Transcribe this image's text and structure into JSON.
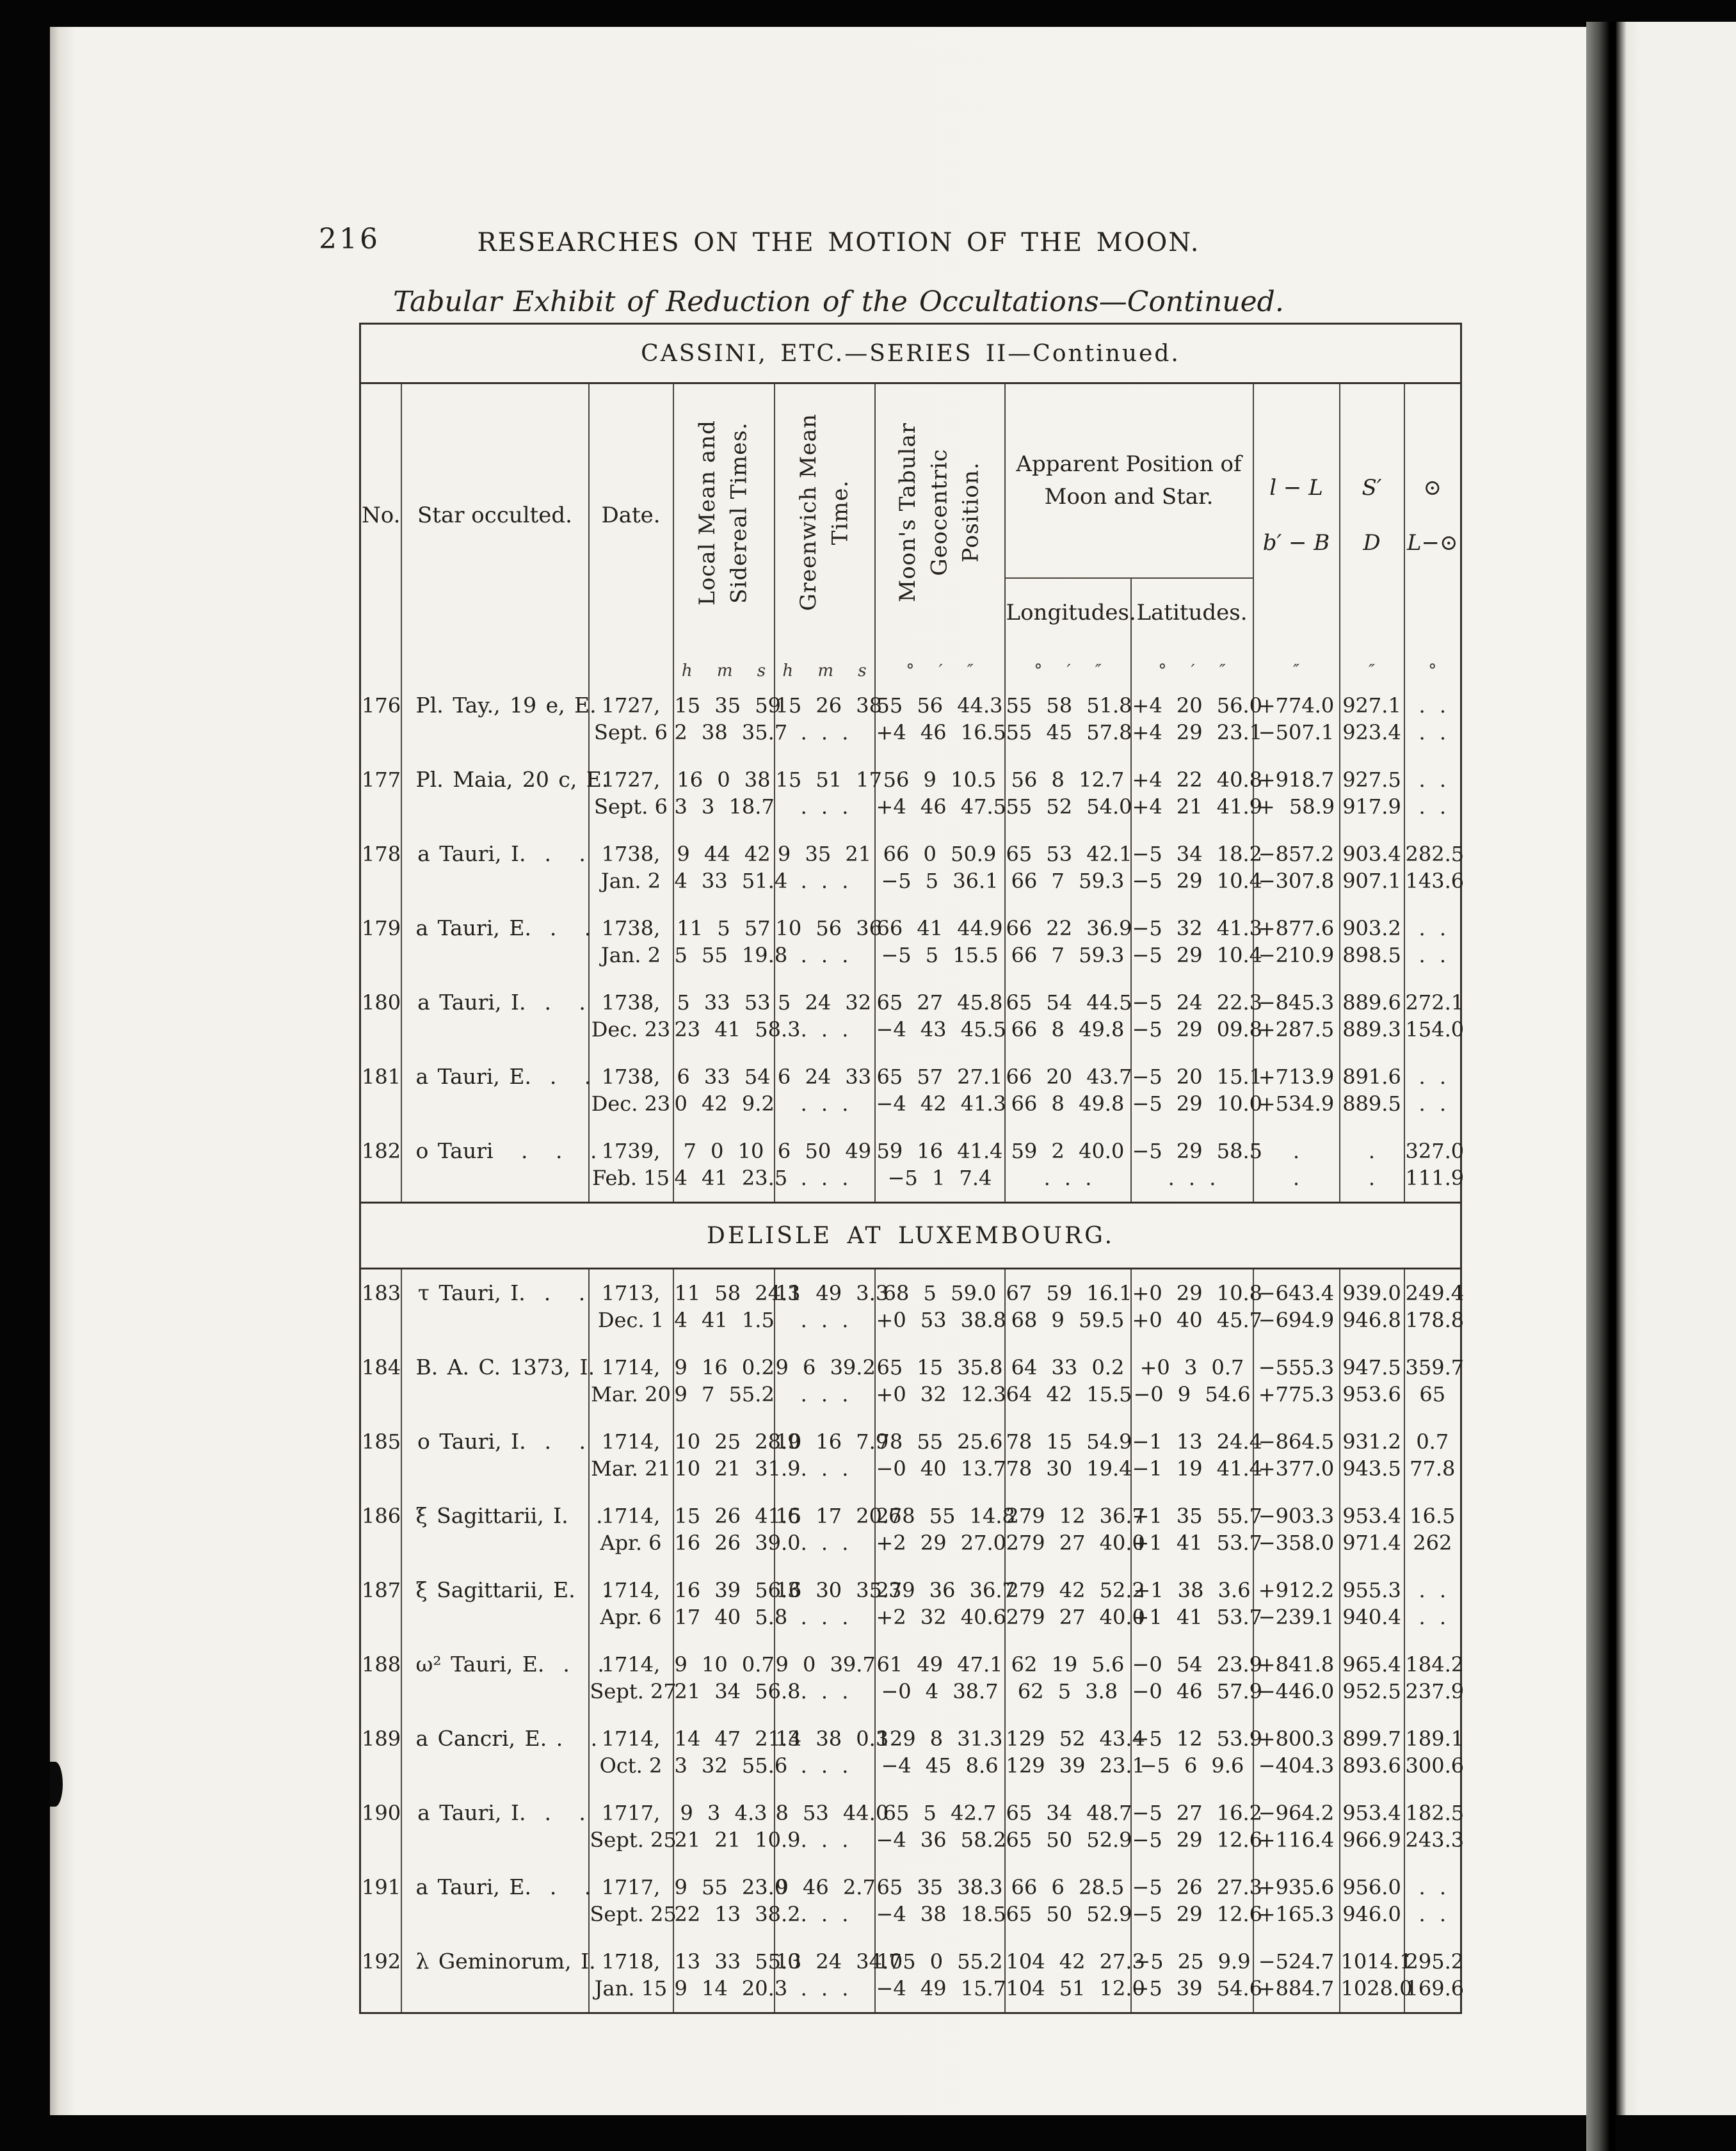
{
  "page": {
    "page_number": "216",
    "running_title": "RESEARCHES ON THE MOTION OF THE MOON.",
    "subtitle": "Tabular Exhibit of Reduction of the Occultations—Continued."
  },
  "table": {
    "header": {
      "no": "No.",
      "star": "Star occulted.",
      "date": "Date.",
      "local_mean": "Local Mean and\nSidereal Times.",
      "gmt": "Greenwich Mean\nTime.",
      "moon_tabular": "Moon's Tabular\nGeocentric\nPosition.",
      "apparent": "Apparent Position of\nMoon and Star.",
      "longitudes": "Longitudes.",
      "latitudes": "Latitudes.",
      "l_minus_L": "l − L",
      "b_minus_B": "b′ − B",
      "s_prime": "S′",
      "d": "D",
      "sun": "⊙",
      "L_minus_sun": "L−⊙"
    },
    "units": [
      "",
      "",
      "",
      "h m s",
      "h m s",
      "° ′ ″",
      "° ′ ″",
      "° ′ ″",
      "″",
      "″",
      "°"
    ],
    "sections": [
      {
        "title": "CASSINI, ETC.—SERIES II—Continued.",
        "rows": [
          {
            "no": "176",
            "star": "Pl. Tay., 19 e, E.",
            "date": [
              "1727,",
              "Sept. 6"
            ],
            "line1": [
              "15 35 59",
              "15 26 38",
              "55 56 44.3",
              "55 58 51.8",
              "+4 20 56.0",
              "+774.0",
              "927.1",
              ". ."
            ],
            "line2": [
              "2 38 35.7",
              ". . .",
              "+4 46 16.5",
              "55 45 57.8",
              "+4 29 23.1",
              "−507.1",
              "923.4",
              ". ."
            ]
          },
          {
            "no": "177",
            "star": "Pl. Maia, 20 c, E.",
            "date": [
              "1727,",
              "Sept. 6"
            ],
            "line1": [
              "16 0 38",
              "15 51 17",
              "56 9 10.5",
              "56 8 12.7",
              "+4 22 40.8",
              "+918.7",
              "927.5",
              ". ."
            ],
            "line2": [
              "3 3 18.7",
              ". . .",
              "+4 46 47.5",
              "55 52 54.0",
              "+4 21 41.9",
              "+ 58.9",
              "917.9",
              ". ."
            ]
          },
          {
            "no": "178",
            "star": "a Tauri, I.  .   .",
            "date": [
              "1738,",
              "Jan. 2"
            ],
            "line1": [
              "9 44 42",
              "9 35 21",
              "66 0 50.9",
              "65 53 42.1",
              "−5 34 18.2",
              "−857.2",
              "903.4",
              "282.5"
            ],
            "line2": [
              "4 33 51.4",
              ". . .",
              "−5 5 36.1",
              "66 7 59.3",
              "−5 29 10.4",
              "−307.8",
              "907.1",
              "143.6"
            ]
          },
          {
            "no": "179",
            "star": "a Tauri, E.  .   .",
            "date": [
              "1738,",
              "Jan. 2"
            ],
            "line1": [
              "11 5 57",
              "10 56 36",
              "66 41 44.9",
              "66 22 36.9",
              "−5 32 41.3",
              "+877.6",
              "903.2",
              ". ."
            ],
            "line2": [
              "5 55 19.8",
              ". . .",
              "−5 5 15.5",
              "66 7 59.3",
              "−5 29 10.4",
              "−210.9",
              "898.5",
              ". ."
            ]
          },
          {
            "no": "180",
            "star": "a Tauri, I.  .   .",
            "date": [
              "1738,",
              "Dec. 23"
            ],
            "line1": [
              "5 33 53",
              "5 24 32",
              "65 27 45.8",
              "65 54 44.5",
              "−5 24 22.3",
              "−845.3",
              "889.6",
              "272.1"
            ],
            "line2": [
              "23 41 58.3",
              ". . .",
              "−4 43 45.5",
              "66 8 49.8",
              "−5 29 09.8",
              "+287.5",
              "889.3",
              "154.0"
            ]
          },
          {
            "no": "181",
            "star": "a Tauri, E.  .   .",
            "date": [
              "1738,",
              "Dec. 23"
            ],
            "line1": [
              "6 33 54",
              "6 24 33",
              "65 57 27.1",
              "66 20 43.7",
              "−5 20 15.1",
              "+713.9",
              "891.6",
              ". ."
            ],
            "line2": [
              "0 42 9.2",
              ". . .",
              "−4 42 41.3",
              "66 8 49.8",
              "−5 29 10.0",
              "+534.9",
              "889.5",
              ". ."
            ]
          },
          {
            "no": "182",
            "star": "o Tauri   .   .   .",
            "date": [
              "1739,",
              "Feb. 15"
            ],
            "line1": [
              "7 0 10",
              "6 50 49",
              "59 16 41.4",
              "59 2 40.0",
              "−5 29 58.5",
              ".",
              ".",
              "327.0"
            ],
            "line2": [
              "4 41 23.5",
              ". . .",
              "−5 1 7.4",
              ". . .",
              ". . .",
              ".",
              ".",
              "111.9"
            ]
          }
        ]
      },
      {
        "title": "DELISLE AT LUXEMBOURG.",
        "rows": [
          {
            "no": "183",
            "star": "τ Tauri, I.  .   .",
            "date": [
              "1713,",
              "Dec. 1"
            ],
            "line1": [
              "11 58 24.3",
              "11 49 3.3",
              "68 5 59.0",
              "67 59 16.1",
              "+0 29 10.8",
              "−643.4",
              "939.0",
              "249.4"
            ],
            "line2": [
              "4 41 1.5",
              ". . .",
              "+0 53 38.8",
              "68 9 59.5",
              "+0 40 45.7",
              "−694.9",
              "946.8",
              "178.8"
            ]
          },
          {
            "no": "184",
            "star": "B. A. C. 1373, I.",
            "date": [
              "1714,",
              "Mar. 20"
            ],
            "line1": [
              "9 16 0.2",
              "9 6 39.2",
              "65 15 35.8",
              "64 33 0.2",
              "+0 3 0.7",
              "−555.3",
              "947.5",
              "359.7"
            ],
            "line2": [
              "9 7 55.2",
              ". . .",
              "+0 32 12.3",
              "64 42 15.5",
              "−0 9 54.6",
              "+775.3",
              "953.6",
              "65"
            ]
          },
          {
            "no": "185",
            "star": "o Tauri, I.  .   .",
            "date": [
              "1714,",
              "Mar. 21"
            ],
            "line1": [
              "10 25 28.9",
              "10 16 7.9",
              "78 55 25.6",
              "78 15 54.9",
              "−1 13 24.4",
              "−864.5",
              "931.2",
              "0.7"
            ],
            "line2": [
              "10 21 31.9",
              ". . .",
              "−0 40 13.7",
              "78 30 19.4",
              "−1 19 41.4",
              "+377.0",
              "943.5",
              "77.8"
            ]
          },
          {
            "no": "186",
            "star": "ξ Sagittarii, I.   .",
            "date": [
              "1714,",
              "Apr. 6"
            ],
            "line1": [
              "15 26 41.6",
              "15 17 20.6",
              "278 55 14.8",
              "279 12 36.7",
              "+1 35 55.7",
              "−903.3",
              "953.4",
              "16.5"
            ],
            "line2": [
              "16 26 39.0",
              ". . .",
              "+2 29 27.0",
              "279 27 40.0",
              "+1 41 53.7",
              "−358.0",
              "971.4",
              "262"
            ]
          },
          {
            "no": "187",
            "star": "ξ Sagittarii, E.   .",
            "date": [
              "1714,",
              "Apr. 6"
            ],
            "line1": [
              "16 39 56.3",
              "16 30 35.3",
              "279 36 36.7",
              "279 42 52.2",
              "+1 38 3.6",
              "+912.2",
              "955.3",
              ". ."
            ],
            "line2": [
              "17 40 5.8",
              ". . .",
              "+2 32 40.6",
              "279 27 40.0",
              "+1 41 53.7",
              "−239.1",
              "940.4",
              ". ."
            ]
          },
          {
            "no": "188",
            "star": "ω² Tauri, E.  .   .",
            "date": [
              "1714,",
              "Sept. 27"
            ],
            "line1": [
              "9 10 0.7",
              "9 0 39.7",
              "61 49 47.1",
              "62 19 5.6",
              "−0 54 23.9",
              "+841.8",
              "965.4",
              "184.2"
            ],
            "line2": [
              "21 34 56.8",
              ". . .",
              "−0 4 38.7",
              "62 5 3.8",
              "−0 46 57.9",
              "−446.0",
              "952.5",
              "237.9"
            ]
          },
          {
            "no": "189",
            "star": "a Cancri, E. .   .",
            "date": [
              "1714,",
              "Oct. 2"
            ],
            "line1": [
              "14 47 21.3",
              "14 38 0.3",
              "129 8 31.3",
              "129 52 43.4",
              "−5 12 53.9",
              "+800.3",
              "899.7",
              "189.1"
            ],
            "line2": [
              "3 32 55.6",
              ". . .",
              "−4 45 8.6",
              "129 39 23.1",
              "−5 6 9.6",
              "−404.3",
              "893.6",
              "300.6"
            ]
          },
          {
            "no": "190",
            "star": "a Tauri, I.  .   .",
            "date": [
              "1717,",
              "Sept. 25"
            ],
            "line1": [
              "9 3 4.3",
              "8 53 44.0",
              "65 5 42.7",
              "65 34 48.7",
              "−5 27 16.2",
              "−964.2",
              "953.4",
              "182.5"
            ],
            "line2": [
              "21 21 10.9",
              ". . .",
              "−4 36 58.2",
              "65 50 52.9",
              "−5 29 12.6",
              "+116.4",
              "966.9",
              "243.3"
            ]
          },
          {
            "no": "191",
            "star": "a Tauri, E.  .   .",
            "date": [
              "1717,",
              "Sept. 25"
            ],
            "line1": [
              "9 55 23.0",
              "9 46 2.7",
              "65 35 38.3",
              "66 6 28.5",
              "−5 26 27.3",
              "+935.6",
              "956.0",
              ". ."
            ],
            "line2": [
              "22 13 38.2",
              ". . .",
              "−4 38 18.5",
              "65 50 52.9",
              "−5 29 12.6",
              "+165.3",
              "946.0",
              ". ."
            ]
          },
          {
            "no": "192",
            "star": "λ Geminorum, I.",
            "date": [
              "1718,",
              "Jan. 15"
            ],
            "line1": [
              "13 33 55.0",
              "13 24 34.7",
              "105 0 55.2",
              "104 42 27.3",
              "−5 25 9.9",
              "−524.7",
              "1014.1",
              "295.2"
            ],
            "line2": [
              "9 14 20.3",
              ". . .",
              "−4 49 15.7",
              "104 51 12.0",
              "−5 39 54.6",
              "+884.7",
              "1028.0",
              "169.6"
            ]
          }
        ]
      }
    ]
  }
}
